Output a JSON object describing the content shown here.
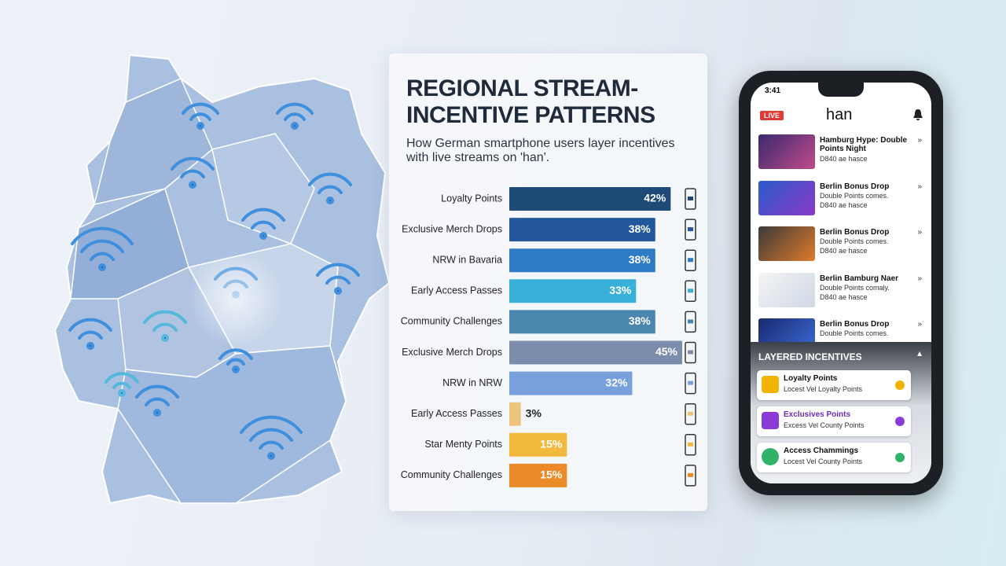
{
  "chart_data": {
    "type": "bar",
    "orientation": "horizontal",
    "title": "REGIONAL STREAM-INCENTIVE PATTERNS",
    "subtitle": "How German smartphone users layer incentives with live streams on 'han'.",
    "categories": [
      "Loyalty Points",
      "Exclusive Merch Drops",
      "NRW in Bavaria",
      "Early Access Passes",
      "Community Challenges",
      "Exclusive Merch Drops",
      "NRW in NRW",
      "Early Access Passes",
      "Star Menty Points",
      "Community Challenges"
    ],
    "values": [
      42,
      38,
      38,
      33,
      38,
      45,
      32,
      3,
      15,
      15
    ],
    "value_labels": [
      "42%",
      "38%",
      "38%",
      "33%",
      "38%",
      "45%",
      "32%",
      "3%",
      "15%",
      "15%"
    ],
    "colors": [
      "#1e4a78",
      "#23589a",
      "#2f7cc6",
      "#38b0d8",
      "#4a86ae",
      "#7c8dac",
      "#78a0dc",
      "#ecc47c",
      "#f3b93c",
      "#ec8a2a"
    ]
  },
  "phone": {
    "time": "3:41",
    "live": "LIVE",
    "app": "han",
    "streams": [
      {
        "title": "Hamburg Hype: Double Points Night",
        "lines": [
          "D840 ae hasce"
        ]
      },
      {
        "title": "Berlin Bonus Drop",
        "lines": [
          "Double Points comes.",
          "D840 ae hasce"
        ]
      },
      {
        "title": "Berlin Bonus Drop",
        "lines": [
          "Double Points comes.",
          "D840 ae hasce"
        ]
      },
      {
        "title": "Berlin Bamburg Naer",
        "lines": [
          "Double Points comaly.",
          "D840 ae hasce"
        ]
      },
      {
        "title": "Berlin Bonus Drop",
        "lines": [
          "Double Points comes."
        ]
      }
    ],
    "panel_title": "LAYERED INCENTIVES",
    "incentives": [
      {
        "title": "Loyalty Points",
        "sub": "Locest Vel Loyalty Points"
      },
      {
        "title": "Exclusives Points",
        "sub": "Excess Vel County Points"
      },
      {
        "title": "Access Chammings",
        "sub": "Locest Vel County Points"
      }
    ]
  }
}
